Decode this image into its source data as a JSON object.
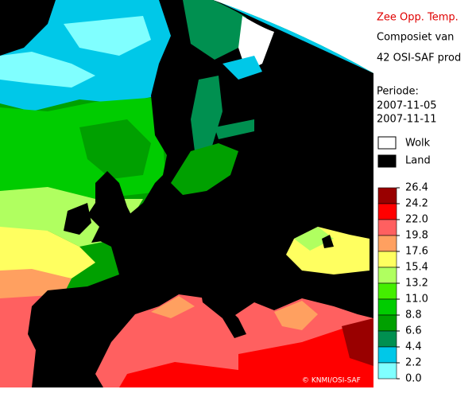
{
  "header": {
    "title": "Zee Opp. Temp.",
    "line1": "Composiet van",
    "line2": "42 OSI-SAF prod",
    "period_label": "Periode:",
    "date_start": "2007-11-05",
    "date_end": "2007-11-11"
  },
  "legend": {
    "cloud": "Wolk",
    "land": "Land"
  },
  "scale": {
    "labels": [
      "26.4",
      "24.2",
      "22.0",
      "19.8",
      "17.6",
      "15.4",
      "13.2",
      "11.0",
      "8.8",
      "6.6",
      "4.4",
      "2.2",
      "0.0"
    ],
    "colors": [
      "#990000",
      "#ff0000",
      "#ff6060",
      "#ffa060",
      "#ffff60",
      "#b0ff60",
      "#44ee00",
      "#00cc00",
      "#00a000",
      "#009050",
      "#00c8e8",
      "#80ffff"
    ]
  },
  "credit": "© KNMI/OSI-SAF"
}
